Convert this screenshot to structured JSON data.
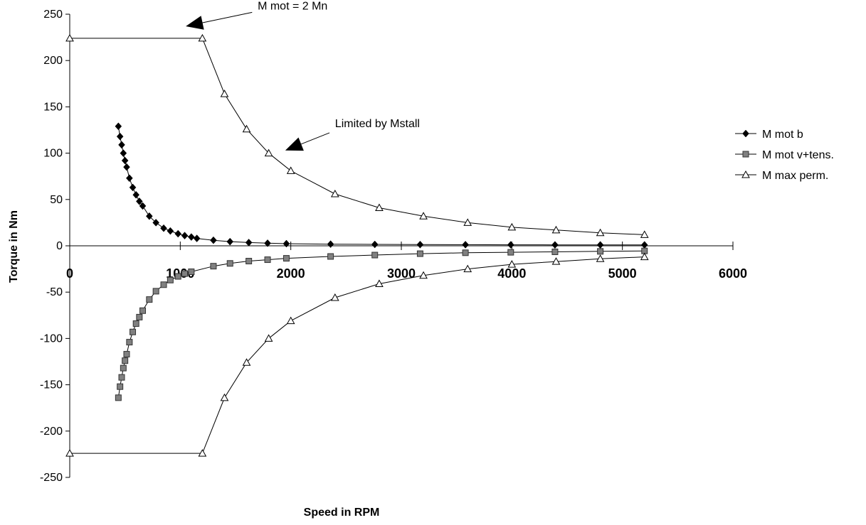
{
  "chart_data": {
    "type": "line",
    "title": "",
    "xlabel": "Speed in RPM",
    "ylabel": "Torque in Nm",
    "xlim": [
      0,
      6000
    ],
    "ylim": [
      -250,
      250
    ],
    "x_ticks": [
      "0",
      "1000",
      "2000",
      "3000",
      "4000",
      "5000",
      "6000"
    ],
    "y_ticks": [
      "250",
      "200",
      "150",
      "100",
      "50",
      "0",
      "-50",
      "-100",
      "-150",
      "-200",
      "-250"
    ],
    "grid": false,
    "legend_position": "right",
    "series": [
      {
        "name": "M mot b",
        "marker": "diamond",
        "color": "#000000",
        "points": [
          [
            440,
            129
          ],
          [
            455,
            118
          ],
          [
            470,
            109
          ],
          [
            485,
            100
          ],
          [
            500,
            92
          ],
          [
            515,
            85
          ],
          [
            540,
            73
          ],
          [
            570,
            63
          ],
          [
            600,
            55
          ],
          [
            630,
            48
          ],
          [
            660,
            43
          ],
          [
            720,
            32
          ],
          [
            780,
            25
          ],
          [
            850,
            19
          ],
          [
            910,
            16
          ],
          [
            980,
            13
          ],
          [
            1040,
            11
          ],
          [
            1100,
            9.5
          ],
          [
            1150,
            8
          ],
          [
            1300,
            6
          ],
          [
            1450,
            4.5
          ],
          [
            1620,
            3.5
          ],
          [
            1790,
            2.8
          ],
          [
            1960,
            2.3
          ],
          [
            2360,
            1.8
          ],
          [
            2760,
            1.5
          ],
          [
            3170,
            1.3
          ],
          [
            3580,
            1.2
          ],
          [
            3990,
            1.1
          ],
          [
            4390,
            1
          ],
          [
            4800,
            1
          ],
          [
            5200,
            1
          ]
        ]
      },
      {
        "name": "M mot v+tens.",
        "marker": "square",
        "color": "#808080",
        "points": [
          [
            440,
            -164
          ],
          [
            455,
            -152
          ],
          [
            470,
            -142
          ],
          [
            485,
            -132
          ],
          [
            500,
            -124
          ],
          [
            515,
            -117
          ],
          [
            540,
            -104
          ],
          [
            570,
            -93
          ],
          [
            600,
            -84
          ],
          [
            630,
            -77
          ],
          [
            660,
            -70
          ],
          [
            720,
            -58
          ],
          [
            780,
            -49
          ],
          [
            850,
            -42
          ],
          [
            910,
            -37
          ],
          [
            980,
            -33
          ],
          [
            1040,
            -30
          ],
          [
            1100,
            -28
          ],
          [
            1300,
            -22
          ],
          [
            1450,
            -19
          ],
          [
            1620,
            -16.5
          ],
          [
            1790,
            -15
          ],
          [
            1960,
            -13.5
          ],
          [
            2360,
            -11.5
          ],
          [
            2760,
            -10
          ],
          [
            3170,
            -8.5
          ],
          [
            3580,
            -7.5
          ],
          [
            3990,
            -7
          ],
          [
            4390,
            -6.5
          ],
          [
            4800,
            -6
          ],
          [
            5200,
            -5.5
          ]
        ]
      },
      {
        "name": "M max perm.",
        "marker": "triangle",
        "color": "#000000",
        "points": [
          [
            0,
            224
          ],
          [
            1200,
            224
          ],
          [
            1400,
            164
          ],
          [
            1600,
            126
          ],
          [
            1800,
            100
          ],
          [
            2000,
            81
          ],
          [
            2400,
            56
          ],
          [
            2800,
            41
          ],
          [
            3200,
            32
          ],
          [
            3600,
            25
          ],
          [
            4000,
            20
          ],
          [
            4400,
            17
          ],
          [
            4800,
            14
          ],
          [
            5200,
            12
          ]
        ]
      },
      {
        "name": "",
        "marker": "triangle",
        "color": "#000000",
        "points": [
          [
            0,
            -224
          ],
          [
            1200,
            -224
          ],
          [
            1400,
            -164
          ],
          [
            1600,
            -126
          ],
          [
            1800,
            -100
          ],
          [
            2000,
            -81
          ],
          [
            2400,
            -56
          ],
          [
            2800,
            -41
          ],
          [
            3200,
            -32
          ],
          [
            3600,
            -25
          ],
          [
            4000,
            -20
          ],
          [
            4400,
            -17
          ],
          [
            4800,
            -14
          ],
          [
            5200,
            -12
          ]
        ]
      }
    ],
    "annotations": [
      {
        "text": "M mot = 2 Mn",
        "text_at": [
          1700,
          255
        ],
        "line_from": [
          1650,
          252
        ],
        "arrow_to": [
          1050,
          237
        ]
      },
      {
        "text": "Limited by Mstall",
        "text_at": [
          2400,
          128
        ],
        "line_from": [
          2350,
          122
        ],
        "arrow_to": [
          1950,
          103
        ]
      }
    ]
  }
}
